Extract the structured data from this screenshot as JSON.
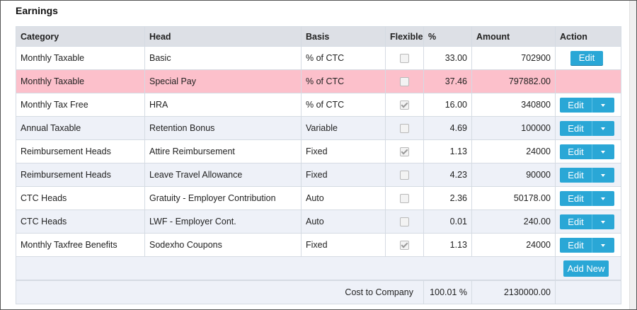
{
  "section_title": "Earnings",
  "columns": [
    "Category",
    "Head",
    "Basis",
    "Flexible",
    "%",
    "Amount",
    "Action"
  ],
  "rows": [
    {
      "category": "Monthly Taxable",
      "head": "Basic",
      "basis": "% of CTC",
      "flexible": false,
      "percent": "33.00",
      "amount": "702900",
      "action": "Edit",
      "action_type": "single",
      "style": "white"
    },
    {
      "category": "Monthly Taxable",
      "head": "Special Pay",
      "basis": "% of CTC",
      "flexible": false,
      "percent": "37.46",
      "amount": "797882.00",
      "action": "",
      "action_type": "none",
      "style": "pink"
    },
    {
      "category": "Monthly Tax Free",
      "head": "HRA",
      "basis": "% of CTC",
      "flexible": true,
      "percent": "16.00",
      "amount": "340800",
      "action": "Edit",
      "action_type": "split",
      "style": "white"
    },
    {
      "category": "Annual Taxable",
      "head": "Retention Bonus",
      "basis": "Variable",
      "flexible": false,
      "percent": "4.69",
      "amount": "100000",
      "action": "Edit",
      "action_type": "split",
      "style": "alt"
    },
    {
      "category": "Reimbursement Heads",
      "head": "Attire Reimbursement",
      "basis": "Fixed",
      "flexible": true,
      "percent": "1.13",
      "amount": "24000",
      "action": "Edit",
      "action_type": "split",
      "style": "white"
    },
    {
      "category": "Reimbursement Heads",
      "head": "Leave Travel Allowance",
      "basis": "Fixed",
      "flexible": false,
      "percent": "4.23",
      "amount": "90000",
      "action": "Edit",
      "action_type": "split",
      "style": "alt"
    },
    {
      "category": "CTC Heads",
      "head": "Gratuity - Employer Contribution",
      "basis": "Auto",
      "flexible": false,
      "percent": "2.36",
      "amount": "50178.00",
      "action": "Edit",
      "action_type": "split",
      "style": "white"
    },
    {
      "category": "CTC Heads",
      "head": "LWF - Employer Cont.",
      "basis": "Auto",
      "flexible": false,
      "percent": "0.01",
      "amount": "240.00",
      "action": "Edit",
      "action_type": "split",
      "style": "alt"
    },
    {
      "category": "Monthly Taxfree Benefits",
      "head": "Sodexho Coupons",
      "basis": "Fixed",
      "flexible": true,
      "percent": "1.13",
      "amount": "24000",
      "action": "Edit",
      "action_type": "split",
      "style": "white"
    }
  ],
  "add_new_label": "Add New",
  "footer": {
    "label": "Cost to Company",
    "percent": "100.01 %",
    "amount": "2130000.00"
  }
}
